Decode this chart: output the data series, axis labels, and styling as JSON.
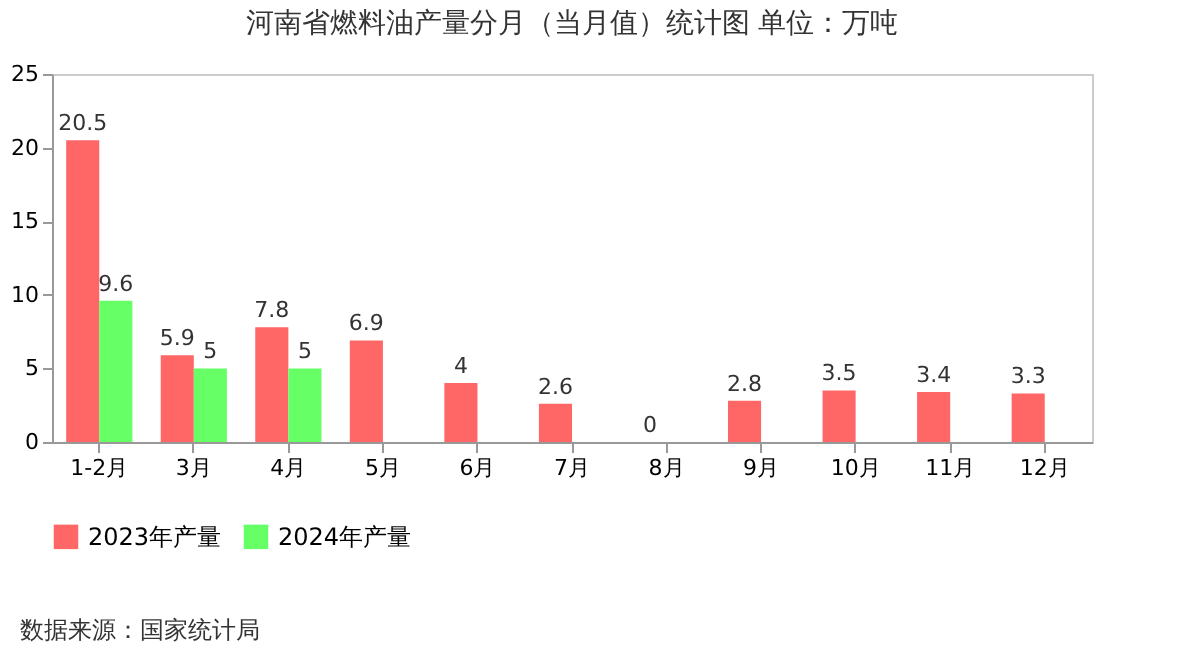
{
  "chart_data": {
    "type": "bar",
    "title": "河南省燃料油产量分月（当月值）统计图 单位：万吨",
    "categories": [
      "1-2月",
      "3月",
      "4月",
      "5月",
      "6月",
      "7月",
      "8月",
      "9月",
      "10月",
      "11月",
      "12月"
    ],
    "series": [
      {
        "name": "2023年产量",
        "color": "#ff6666",
        "values": [
          20.5,
          5.9,
          7.8,
          6.9,
          4,
          2.6,
          0,
          2.8,
          3.5,
          3.4,
          3.3
        ]
      },
      {
        "name": "2024年产量",
        "color": "#66ff66",
        "values": [
          9.6,
          5,
          5,
          null,
          null,
          null,
          null,
          null,
          null,
          null,
          null
        ]
      }
    ],
    "ylim": [
      0,
      25
    ],
    "yticks": [
      0,
      5,
      10,
      15,
      20,
      25
    ],
    "data_labels": true,
    "legend": "bottom",
    "grid": false,
    "annotations": [
      "数据来源：国家统计局"
    ]
  }
}
